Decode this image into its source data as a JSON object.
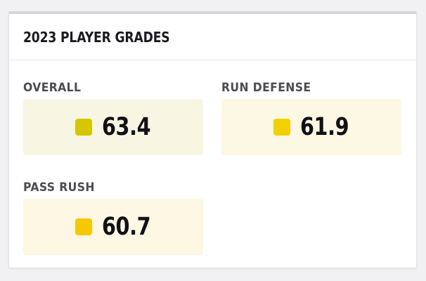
{
  "card": {
    "title": "2023 PLAYER GRADES"
  },
  "grades": [
    {
      "label": "OVERALL",
      "value": "63.4",
      "swatch_color": "#d6c600",
      "bg_color": "#f7f6e3"
    },
    {
      "label": "RUN DEFENSE",
      "value": "61.9",
      "swatch_color": "#f2cf00",
      "bg_color": "#fdf8e4"
    },
    {
      "label": "PASS RUSH",
      "value": "60.7",
      "swatch_color": "#f5c800",
      "bg_color": "#fdf7e3"
    }
  ]
}
